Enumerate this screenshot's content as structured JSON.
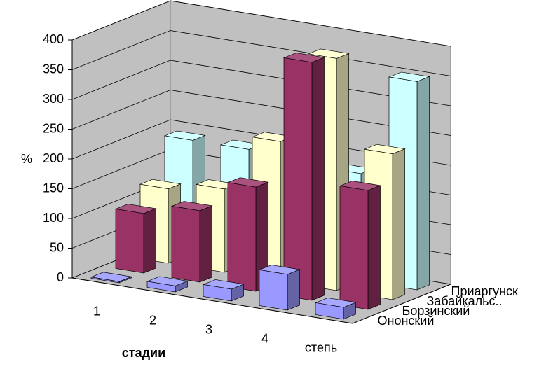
{
  "chart_data": {
    "type": "bar3d",
    "categories": [
      "1",
      "2",
      "3",
      "4",
      "степь"
    ],
    "x_label": "стадии",
    "y_label": "%",
    "ylim": [
      0,
      400
    ],
    "yticks": [
      0,
      50,
      100,
      150,
      200,
      250,
      300,
      350,
      400
    ],
    "grid": true,
    "series": [
      {
        "name": "Ононский",
        "color": "#9999ff",
        "values": [
          2,
          10,
          20,
          60,
          20
        ]
      },
      {
        "name": "Борзинский",
        "color": "#993366",
        "values": [
          100,
          120,
          175,
          400,
          200
        ]
      },
      {
        "name": "Забайкальс..",
        "color": "#ffffcc",
        "values": [
          125,
          140,
          235,
          390,
          245
        ]
      },
      {
        "name": "Приаргунск",
        "color": "#ccffff",
        "values": [
          190,
          190,
          120,
          180,
          350
        ]
      }
    ]
  }
}
